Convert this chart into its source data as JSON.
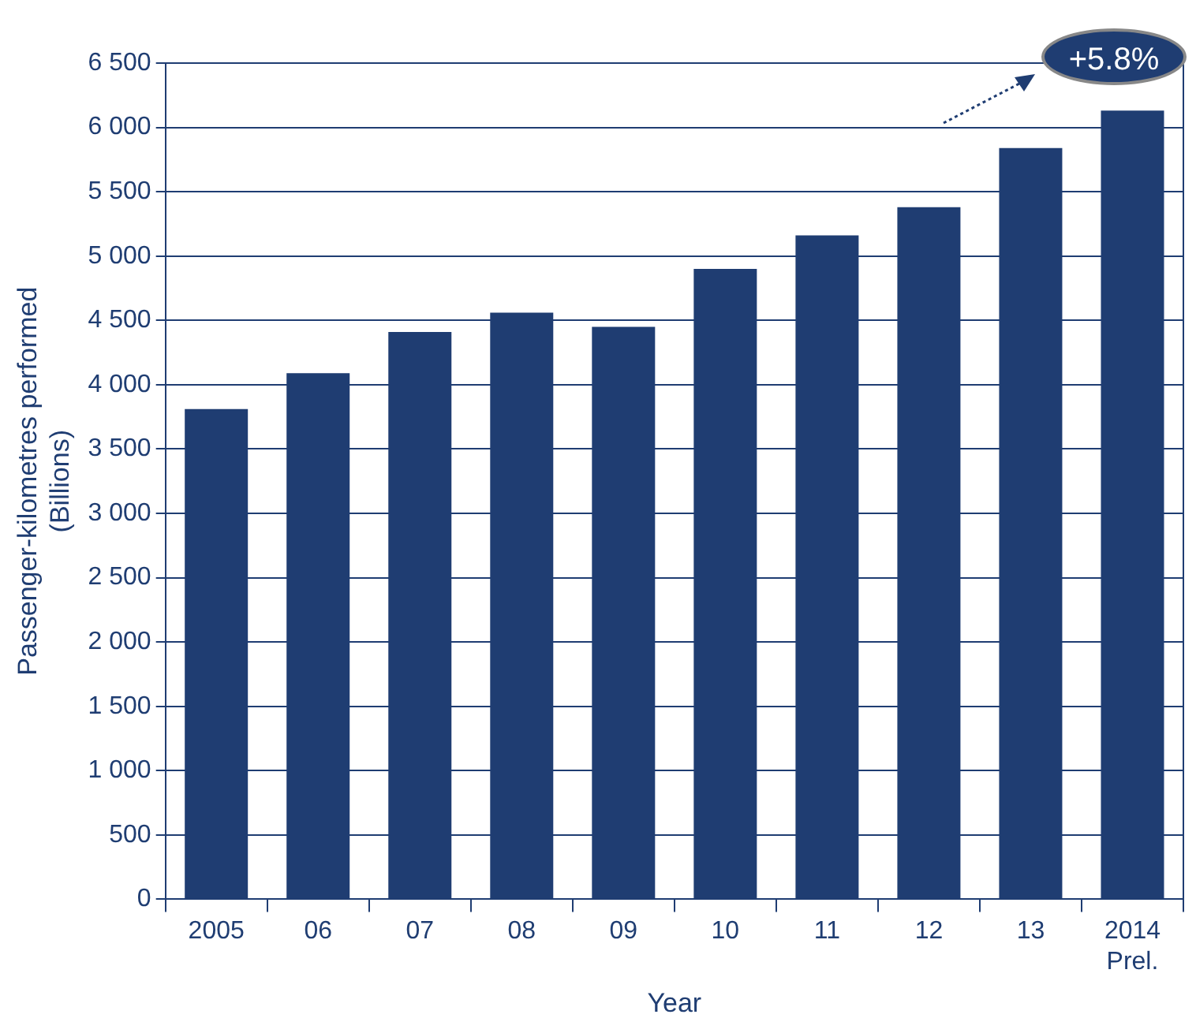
{
  "chart_data": {
    "type": "bar",
    "xlabel": "Year",
    "ylabel": "Passenger-kilometres performed\n(Billions)",
    "categories": [
      "2005",
      "06",
      "07",
      "08",
      "09",
      "10",
      "11",
      "12",
      "13",
      "2014\nPrel."
    ],
    "values": [
      3810,
      4090,
      4410,
      4560,
      4450,
      4900,
      5160,
      5380,
      5840,
      6130
    ],
    "color": "#1f3d72",
    "ylim": [
      0,
      6500
    ],
    "yticks": [
      {
        "value": 0,
        "label": "0"
      },
      {
        "value": 500,
        "label": "500"
      },
      {
        "value": 1000,
        "label": "1 000"
      },
      {
        "value": 1500,
        "label": "1 500"
      },
      {
        "value": 2000,
        "label": "2 000"
      },
      {
        "value": 2500,
        "label": "2 500"
      },
      {
        "value": 3000,
        "label": "3 000"
      },
      {
        "value": 3500,
        "label": "3 500"
      },
      {
        "value": 4000,
        "label": "4 000"
      },
      {
        "value": 4500,
        "label": "4 500"
      },
      {
        "value": 5000,
        "label": "5 000"
      },
      {
        "value": 5500,
        "label": "5 500"
      },
      {
        "value": 6000,
        "label": "6 000"
      },
      {
        "value": 6500,
        "label": "6 500"
      }
    ],
    "grid": "y",
    "annotations": [
      "+5.8%"
    ]
  }
}
